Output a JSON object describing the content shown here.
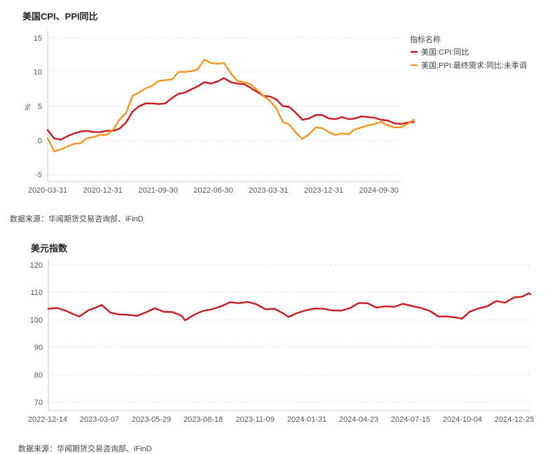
{
  "chart_data": [
    {
      "type": "line",
      "title": "美国CPI、PPI同比",
      "ylabel": "%",
      "xlabel": "",
      "ylim": [
        -6,
        16
      ],
      "y_ticks": [
        15,
        10,
        5,
        0,
        -5
      ],
      "x_tick_labels": [
        "2020-03-31",
        "2020-12-31",
        "2021-09-30",
        "2022-06-30",
        "2023-03-31",
        "2023-12-31",
        "2024-09-30"
      ],
      "x_range": [
        "2020-03-31",
        "2024-09-30"
      ],
      "legend_title": "指标名称",
      "legend_position": "top-right",
      "grid": "horizontal dashed",
      "series": [
        {
          "name": "美国:CPI:同比",
          "color": "#c8191e",
          "points": [
            [
              "2020-03-31",
              1.5
            ],
            [
              "2020-04-30",
              0.3
            ],
            [
              "2020-05-31",
              0.1
            ],
            [
              "2020-06-30",
              0.6
            ],
            [
              "2020-07-31",
              1.0
            ],
            [
              "2020-08-31",
              1.3
            ],
            [
              "2020-09-30",
              1.4
            ],
            [
              "2020-10-31",
              1.2
            ],
            [
              "2020-11-30",
              1.2
            ],
            [
              "2020-12-31",
              1.4
            ],
            [
              "2021-01-31",
              1.4
            ],
            [
              "2021-02-28",
              1.7
            ],
            [
              "2021-03-31",
              2.6
            ],
            [
              "2021-04-30",
              4.2
            ],
            [
              "2021-05-31",
              5.0
            ],
            [
              "2021-06-30",
              5.4
            ],
            [
              "2021-07-31",
              5.4
            ],
            [
              "2021-08-31",
              5.3
            ],
            [
              "2021-09-30",
              5.4
            ],
            [
              "2021-10-31",
              6.2
            ],
            [
              "2021-11-30",
              6.8
            ],
            [
              "2021-12-31",
              7.0
            ],
            [
              "2022-01-31",
              7.5
            ],
            [
              "2022-02-28",
              7.9
            ],
            [
              "2022-03-31",
              8.5
            ],
            [
              "2022-04-30",
              8.3
            ],
            [
              "2022-05-31",
              8.6
            ],
            [
              "2022-06-30",
              9.1
            ],
            [
              "2022-07-31",
              8.5
            ],
            [
              "2022-08-31",
              8.3
            ],
            [
              "2022-09-30",
              8.2
            ],
            [
              "2022-10-31",
              7.7
            ],
            [
              "2022-11-30",
              7.1
            ],
            [
              "2022-12-31",
              6.5
            ],
            [
              "2023-01-31",
              6.4
            ],
            [
              "2023-02-28",
              6.0
            ],
            [
              "2023-03-31",
              5.0
            ],
            [
              "2023-04-30",
              4.9
            ],
            [
              "2023-05-31",
              4.0
            ],
            [
              "2023-06-30",
              3.0
            ],
            [
              "2023-07-31",
              3.2
            ],
            [
              "2023-08-31",
              3.7
            ],
            [
              "2023-09-30",
              3.7
            ],
            [
              "2023-10-31",
              3.2
            ],
            [
              "2023-11-30",
              3.1
            ],
            [
              "2023-12-31",
              3.4
            ],
            [
              "2024-01-31",
              3.1
            ],
            [
              "2024-02-29",
              3.2
            ],
            [
              "2024-03-31",
              3.5
            ],
            [
              "2024-04-30",
              3.4
            ],
            [
              "2024-05-31",
              3.3
            ],
            [
              "2024-06-30",
              3.0
            ],
            [
              "2024-07-31",
              2.9
            ],
            [
              "2024-08-31",
              2.5
            ],
            [
              "2024-09-30",
              2.4
            ],
            [
              "2024-10-31",
              2.6
            ],
            [
              "2024-11-30",
              2.7
            ]
          ]
        },
        {
          "name": "美国:PPI:最终需求:同比:未季调",
          "color": "#f7941d",
          "points": [
            [
              "2020-03-31",
              0.3
            ],
            [
              "2020-04-30",
              -1.6
            ],
            [
              "2020-05-31",
              -1.3
            ],
            [
              "2020-06-30",
              -0.9
            ],
            [
              "2020-07-31",
              -0.5
            ],
            [
              "2020-08-31",
              -0.4
            ],
            [
              "2020-09-30",
              0.3
            ],
            [
              "2020-10-31",
              0.5
            ],
            [
              "2020-11-30",
              0.8
            ],
            [
              "2020-12-31",
              0.8
            ],
            [
              "2021-01-31",
              1.6
            ],
            [
              "2021-02-28",
              3.0
            ],
            [
              "2021-03-31",
              4.0
            ],
            [
              "2021-04-30",
              6.5
            ],
            [
              "2021-05-31",
              7.0
            ],
            [
              "2021-06-30",
              7.6
            ],
            [
              "2021-07-31",
              8.0
            ],
            [
              "2021-08-31",
              8.7
            ],
            [
              "2021-09-30",
              8.8
            ],
            [
              "2021-10-31",
              8.9
            ],
            [
              "2021-11-30",
              10.0
            ],
            [
              "2021-12-31",
              10.0
            ],
            [
              "2022-01-31",
              10.1
            ],
            [
              "2022-02-28",
              10.4
            ],
            [
              "2022-03-31",
              11.8
            ],
            [
              "2022-04-30",
              11.3
            ],
            [
              "2022-05-31",
              11.2
            ],
            [
              "2022-06-30",
              11.3
            ],
            [
              "2022-07-31",
              9.8
            ],
            [
              "2022-08-31",
              8.7
            ],
            [
              "2022-09-30",
              8.5
            ],
            [
              "2022-10-31",
              8.2
            ],
            [
              "2022-11-30",
              7.4
            ],
            [
              "2022-12-31",
              6.5
            ],
            [
              "2023-01-31",
              5.7
            ],
            [
              "2023-02-28",
              4.7
            ],
            [
              "2023-03-31",
              2.7
            ],
            [
              "2023-04-30",
              2.3
            ],
            [
              "2023-05-31",
              1.1
            ],
            [
              "2023-06-30",
              0.2
            ],
            [
              "2023-07-31",
              0.9
            ],
            [
              "2023-08-31",
              1.9
            ],
            [
              "2023-09-30",
              1.8
            ],
            [
              "2023-10-31",
              1.2
            ],
            [
              "2023-11-30",
              0.8
            ],
            [
              "2023-12-31",
              1.0
            ],
            [
              "2024-01-31",
              0.9
            ],
            [
              "2024-02-29",
              1.6
            ],
            [
              "2024-03-31",
              1.9
            ],
            [
              "2024-04-30",
              2.2
            ],
            [
              "2024-05-31",
              2.4
            ],
            [
              "2024-06-30",
              2.7
            ],
            [
              "2024-07-31",
              2.2
            ],
            [
              "2024-08-31",
              1.9
            ],
            [
              "2024-09-30",
              1.9
            ],
            [
              "2024-10-31",
              2.4
            ],
            [
              "2024-11-30",
              3.0
            ]
          ]
        }
      ]
    },
    {
      "type": "line",
      "title": "美元指数",
      "ylabel": "",
      "xlabel": "",
      "ylim": [
        67,
        122
      ],
      "y_ticks": [
        120,
        110,
        100,
        90,
        80,
        70
      ],
      "x_tick_labels": [
        "2022-12-14",
        "2023-03-07",
        "2023-05-29",
        "2023-08-18",
        "2023-11-09",
        "2024-01-31",
        "2024-04-23",
        "2024-07-15",
        "2024-10-04",
        "2024-12-25"
      ],
      "x_range": [
        "2022-12-14",
        "2025-01-13"
      ],
      "grid": "horizontal dashed",
      "series": [
        {
          "name": "",
          "color": "#c8191e",
          "points": [
            [
              "2022-12-14",
              104.0
            ],
            [
              "2022-12-28",
              104.3
            ],
            [
              "2023-01-11",
              103.2
            ],
            [
              "2023-01-25",
              101.8
            ],
            [
              "2023-02-01",
              101.2
            ],
            [
              "2023-02-15",
              103.4
            ],
            [
              "2023-03-01",
              104.6
            ],
            [
              "2023-03-08",
              105.4
            ],
            [
              "2023-03-22",
              102.6
            ],
            [
              "2023-04-05",
              101.9
            ],
            [
              "2023-04-19",
              101.8
            ],
            [
              "2023-05-03",
              101.4
            ],
            [
              "2023-05-17",
              102.7
            ],
            [
              "2023-05-31",
              104.2
            ],
            [
              "2023-06-14",
              102.9
            ],
            [
              "2023-06-28",
              102.8
            ],
            [
              "2023-07-12",
              101.5
            ],
            [
              "2023-07-18",
              99.8
            ],
            [
              "2023-08-01",
              101.8
            ],
            [
              "2023-08-15",
              103.2
            ],
            [
              "2023-08-29",
              103.8
            ],
            [
              "2023-09-12",
              104.8
            ],
            [
              "2023-09-27",
              106.4
            ],
            [
              "2023-10-11",
              106.0
            ],
            [
              "2023-10-25",
              106.5
            ],
            [
              "2023-11-08",
              105.6
            ],
            [
              "2023-11-22",
              103.8
            ],
            [
              "2023-12-06",
              104.0
            ],
            [
              "2023-12-20",
              102.3
            ],
            [
              "2023-12-28",
              101.0
            ],
            [
              "2024-01-10",
              102.4
            ],
            [
              "2024-01-24",
              103.4
            ],
            [
              "2024-02-07",
              104.1
            ],
            [
              "2024-02-21",
              104.0
            ],
            [
              "2024-03-06",
              103.4
            ],
            [
              "2024-03-20",
              103.3
            ],
            [
              "2024-04-03",
              104.2
            ],
            [
              "2024-04-17",
              106.1
            ],
            [
              "2024-05-01",
              106.0
            ],
            [
              "2024-05-15",
              104.4
            ],
            [
              "2024-05-29",
              104.9
            ],
            [
              "2024-06-12",
              104.7
            ],
            [
              "2024-06-26",
              105.8
            ],
            [
              "2024-07-10",
              105.0
            ],
            [
              "2024-07-24",
              104.3
            ],
            [
              "2024-08-07",
              103.2
            ],
            [
              "2024-08-21",
              101.2
            ],
            [
              "2024-09-04",
              101.2
            ],
            [
              "2024-09-18",
              100.8
            ],
            [
              "2024-09-27",
              100.4
            ],
            [
              "2024-10-09",
              102.9
            ],
            [
              "2024-10-23",
              104.1
            ],
            [
              "2024-11-06",
              104.9
            ],
            [
              "2024-11-20",
              106.8
            ],
            [
              "2024-12-04",
              106.2
            ],
            [
              "2024-12-18",
              108.1
            ],
            [
              "2024-12-31",
              108.4
            ],
            [
              "2025-01-10",
              109.6
            ],
            [
              "2025-01-13",
              109.3
            ]
          ]
        }
      ]
    }
  ],
  "notes": {
    "source1": "数据来源：华闻期货交易咨询部、iFinD",
    "source2": "数据来源：华闻期货交易咨询部、iFinD"
  }
}
